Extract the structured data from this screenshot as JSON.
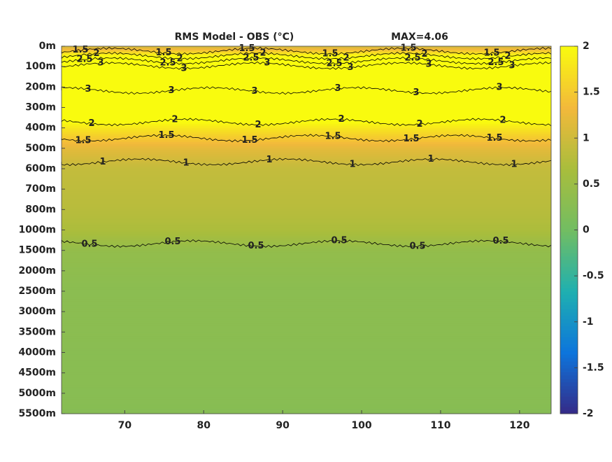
{
  "chart_data": {
    "type": "contour",
    "title": "RMS Model - OBS (°C)",
    "annotation": "MAX=4.06",
    "categories": [
      "0m",
      "100m",
      "200m",
      "300m",
      "400m",
      "500m",
      "600m",
      "700m",
      "800m",
      "1000m",
      "1500m",
      "2000m",
      "2500m",
      "3000m",
      "3500m",
      "4000m",
      "4500m",
      "5000m",
      "5500m"
    ],
    "values": [
      1,
      3.1,
      3.1,
      2.5,
      1.8,
      1.2,
      0.9,
      0.85,
      0.8,
      0.7,
      0.4,
      0.35,
      0.3,
      0.3,
      0.3,
      0.28,
      0.28,
      0.27,
      0.25
    ],
    "xlim": [
      62,
      124
    ],
    "xticks": [
      70,
      80,
      90,
      100,
      110,
      120
    ],
    "clim": [
      -2,
      2
    ],
    "cticks": [
      -2,
      -1.5,
      -1,
      -0.5,
      0,
      0.5,
      1,
      1.5,
      2
    ],
    "contour_levels": [
      0.5,
      1,
      1.5,
      2,
      2.5,
      3
    ],
    "colormap": [
      "#352a87",
      "#0d75dc",
      "#1fb0b0",
      "#72bd62",
      "#a9bd3c",
      "#f3b93b",
      "#f9fb0e"
    ]
  }
}
